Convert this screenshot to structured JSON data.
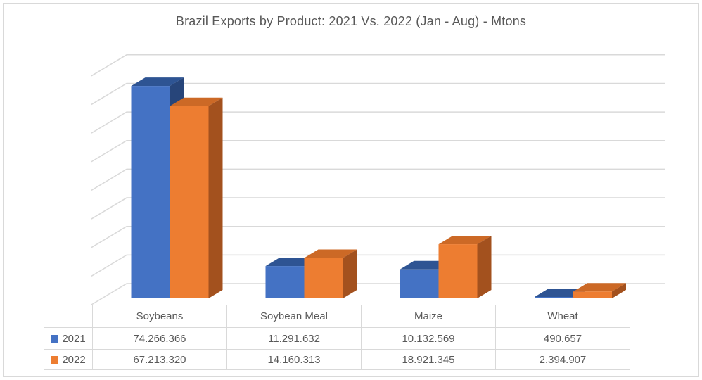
{
  "frame": {
    "border_color": "#D9D9D9",
    "background": "#FFFFFF"
  },
  "chart_data": {
    "type": "bar",
    "style": "3d-clustered-column",
    "title": "Brazil Exports by Product: 2021 Vs. 2022 (Jan - Aug) - Mtons",
    "title_color": "#595959",
    "categories": [
      "Soybeans",
      "Soybean Meal",
      "Maize",
      "Wheat"
    ],
    "series": [
      {
        "name": "2021",
        "values": [
          74266366,
          11291632,
          10132569,
          490657
        ],
        "display_values": [
          "74.266.366",
          "11.291.632",
          "10.132.569",
          "490.657"
        ],
        "color": "#4472C4",
        "top_color": "#2E5493",
        "side_color": "#27457A"
      },
      {
        "name": "2022",
        "values": [
          67213320,
          14160313,
          18921345,
          2394907
        ],
        "display_values": [
          "67.213.320",
          "14.160.313",
          "18.921.345",
          "2.394.907"
        ],
        "color": "#ED7D31",
        "top_color": "#CC6926",
        "side_color": "#A3511E"
      }
    ],
    "ylim": [
      0,
      80000000
    ],
    "y_major_unit": 10000000,
    "gridline_count": 9,
    "grid": true,
    "gridline_color": "#D9D9D9",
    "y_tick_labels_visible": false,
    "legend_position": "data-table-keys"
  },
  "data_table": {
    "border_color": "#D9D9D9",
    "text_color": "#595959"
  }
}
